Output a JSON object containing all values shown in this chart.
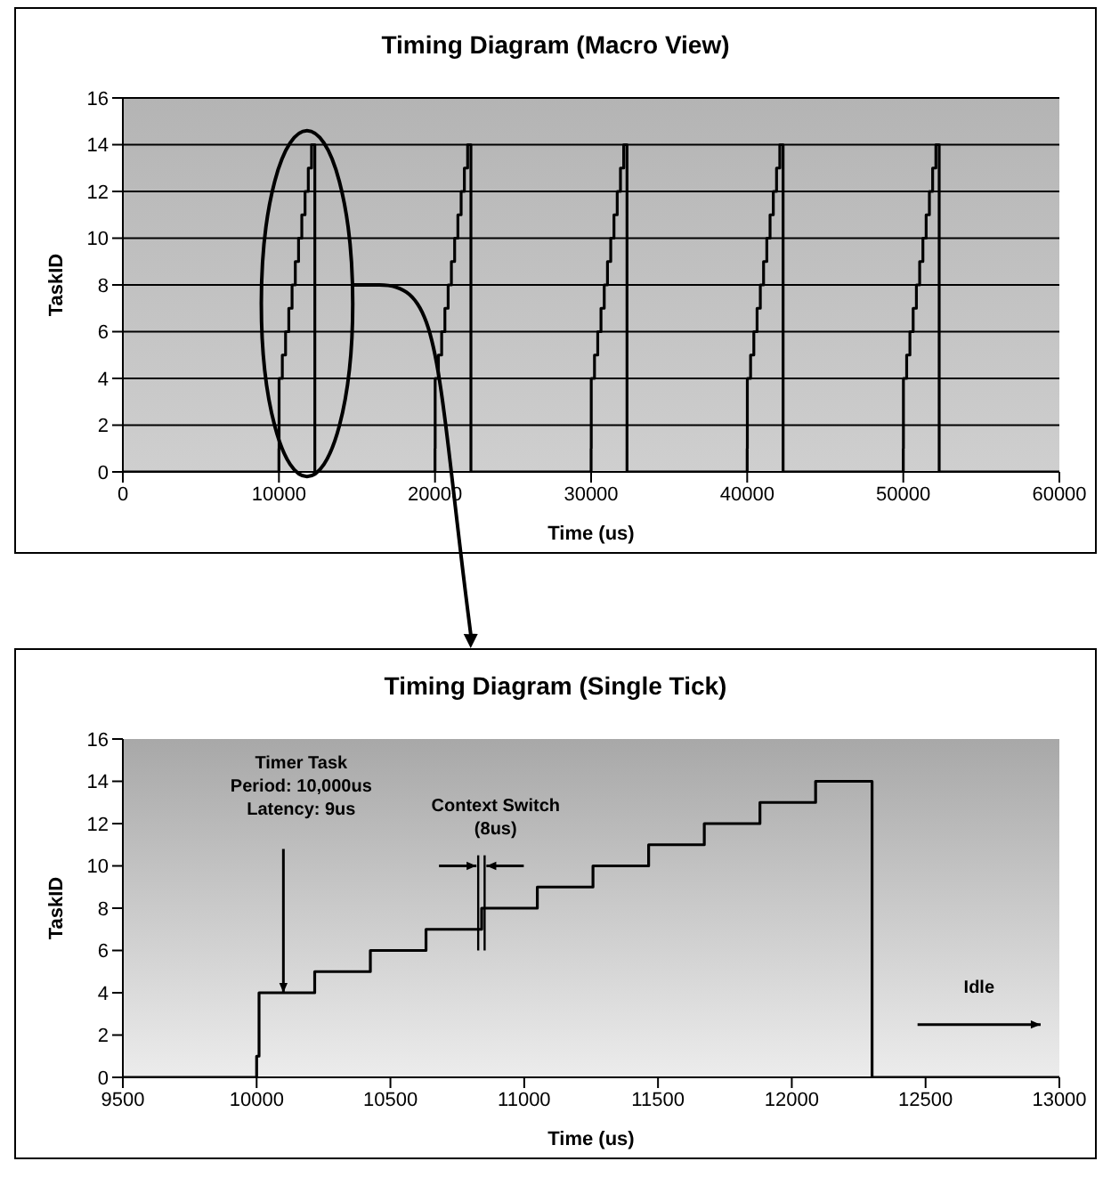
{
  "chart_data": [
    {
      "type": "step",
      "title": "Timing Diagram (Macro View)",
      "xlabel": "Time (us)",
      "ylabel": "TaskID",
      "x": [
        0,
        10000,
        10009,
        10217,
        10425,
        10633,
        10841,
        11049,
        11257,
        11465,
        11673,
        11881,
        12089,
        12300,
        20000,
        20009,
        20217,
        20425,
        20633,
        20841,
        21049,
        21257,
        21465,
        21673,
        21881,
        22089,
        22300,
        30000,
        30009,
        30217,
        30425,
        30633,
        30841,
        31049,
        31257,
        31465,
        31673,
        31881,
        32089,
        32300,
        40000,
        40009,
        40217,
        40425,
        40633,
        40841,
        41049,
        41257,
        41465,
        41673,
        41881,
        42089,
        42300,
        50000,
        50009,
        50217,
        50425,
        50633,
        50841,
        51049,
        51257,
        51465,
        51673,
        51881,
        52089,
        52300,
        60000
      ],
      "series": [
        {
          "color": "#000000",
          "values": [
            0,
            1,
            4,
            5,
            6,
            7,
            8,
            9,
            10,
            11,
            12,
            13,
            14,
            0,
            1,
            4,
            5,
            6,
            7,
            8,
            9,
            10,
            11,
            12,
            13,
            14,
            0,
            1,
            4,
            5,
            6,
            7,
            8,
            9,
            10,
            11,
            12,
            13,
            14,
            0,
            1,
            4,
            5,
            6,
            7,
            8,
            9,
            10,
            11,
            12,
            13,
            14,
            0,
            1,
            4,
            5,
            6,
            7,
            8,
            9,
            10,
            11,
            12,
            13,
            14,
            0,
            0
          ]
        }
      ],
      "xlim": [
        0,
        60000
      ],
      "xticks": [
        0,
        10000,
        20000,
        30000,
        40000,
        50000,
        60000
      ],
      "ylim": [
        0,
        16
      ],
      "yticks": [
        0,
        2,
        4,
        6,
        8,
        10,
        12,
        14,
        16
      ],
      "grid": "y"
    },
    {
      "type": "step",
      "title": "Timing Diagram (Single Tick)",
      "xlabel": "Time (us)",
      "ylabel": "TaskID",
      "x": [
        9500,
        10000,
        10009,
        10217,
        10425,
        10633,
        10841,
        11049,
        11257,
        11465,
        11673,
        11881,
        12089,
        12300,
        13000
      ],
      "series": [
        {
          "color": "#000000",
          "values": [
            0,
            1,
            4,
            5,
            6,
            7,
            8,
            9,
            10,
            11,
            12,
            13,
            14,
            0,
            0
          ]
        }
      ],
      "xlim": [
        9500,
        13000
      ],
      "xticks": [
        9500,
        10000,
        10500,
        11000,
        11500,
        12000,
        12500,
        13000
      ],
      "ylim": [
        0,
        16
      ],
      "yticks": [
        0,
        2,
        4,
        6,
        8,
        10,
        12,
        14,
        16
      ],
      "grid": false,
      "annotations": [
        "Timer Task\nPeriod: 10,000us\nLatency: 9us",
        "Context Switch\n(8us)",
        "Idle"
      ]
    }
  ]
}
